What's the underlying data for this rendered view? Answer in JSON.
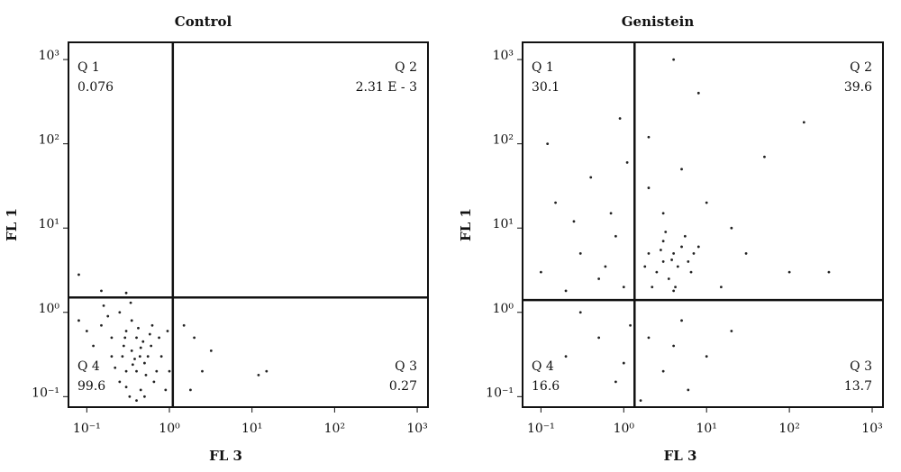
{
  "chart_data": [
    {
      "type": "scatter",
      "title": "Control",
      "x_label": "FL 3",
      "y_label": "FL 1",
      "log_x": true,
      "log_y": true,
      "color": "#222222",
      "xlim": [
        0.06,
        1350
      ],
      "ylim": [
        0.075,
        1600
      ],
      "xticks": [
        {
          "value": 0.1,
          "label": "10⁻¹"
        },
        {
          "value": 1,
          "label": "10⁰"
        },
        {
          "value": 10,
          "label": "10¹"
        },
        {
          "value": 100,
          "label": "10²"
        },
        {
          "value": 1000,
          "label": "10³"
        }
      ],
      "yticks": [
        {
          "value": 0.1,
          "label": "10⁻¹"
        },
        {
          "value": 1,
          "label": "10⁰"
        },
        {
          "value": 10,
          "label": "10¹"
        },
        {
          "value": 100,
          "label": "10²"
        },
        {
          "value": 1000,
          "label": "10³"
        }
      ],
      "gate": {
        "x": 1.1,
        "y": 1.5
      },
      "quadrants": [
        {
          "name": "Q 1",
          "value": 0.076
        },
        {
          "name": "Q 2",
          "value": 0.00231,
          "label": "2.31 E - 3"
        },
        {
          "name": "Q 3",
          "value": 0.27
        },
        {
          "name": "Q 4",
          "value": 99.6
        }
      ],
      "x": [
        0.2,
        0.3,
        0.4,
        0.25,
        0.35,
        0.5,
        0.45,
        0.6,
        0.3,
        0.2,
        0.4,
        0.55,
        0.7,
        0.33,
        0.28,
        0.38,
        0.48,
        0.22,
        0.65,
        0.42,
        0.15,
        0.12,
        0.8,
        0.9,
        0.35,
        0.5,
        0.27,
        0.45,
        0.58,
        0.3,
        0.18,
        0.75,
        0.62,
        0.4,
        0.52,
        0.36,
        0.44,
        0.29,
        1.0,
        0.95,
        0.1,
        0.08,
        0.25,
        0.16,
        0.34,
        2.0,
        2.5,
        3.2,
        12,
        15,
        1.8,
        0.08,
        0.15,
        0.3,
        1.5
      ],
      "y": [
        0.3,
        0.2,
        0.5,
        0.15,
        0.35,
        0.25,
        0.12,
        0.4,
        0.6,
        0.5,
        0.2,
        0.3,
        0.2,
        0.1,
        0.4,
        0.28,
        0.45,
        0.22,
        0.15,
        0.65,
        0.7,
        0.4,
        0.3,
        0.12,
        0.8,
        0.1,
        0.3,
        0.38,
        0.55,
        0.13,
        0.9,
        0.5,
        0.7,
        0.09,
        0.18,
        0.24,
        0.3,
        0.5,
        0.2,
        0.6,
        0.6,
        0.8,
        1.0,
        1.2,
        1.3,
        0.5,
        0.2,
        0.35,
        0.18,
        0.2,
        0.12,
        2.8,
        1.8,
        1.7,
        0.7
      ]
    },
    {
      "type": "scatter",
      "title": "Genistein",
      "x_label": "FL 3",
      "y_label": "FL 1",
      "log_x": true,
      "log_y": true,
      "color": "#222222",
      "xlim": [
        0.06,
        1350
      ],
      "ylim": [
        0.075,
        1600
      ],
      "xticks": [
        {
          "value": 0.1,
          "label": "10⁻¹"
        },
        {
          "value": 1,
          "label": "10⁰"
        },
        {
          "value": 10,
          "label": "10¹"
        },
        {
          "value": 100,
          "label": "10²"
        },
        {
          "value": 1000,
          "label": "10³"
        }
      ],
      "yticks": [
        {
          "value": 0.1,
          "label": "10⁻¹"
        },
        {
          "value": 1,
          "label": "10⁰"
        },
        {
          "value": 10,
          "label": "10¹"
        },
        {
          "value": 100,
          "label": "10²"
        },
        {
          "value": 1000,
          "label": "10³"
        }
      ],
      "gate": {
        "x": 1.35,
        "y": 1.4
      },
      "quadrants": [
        {
          "name": "Q 1",
          "value": 30.1
        },
        {
          "name": "Q 2",
          "value": 39.6
        },
        {
          "name": "Q 3",
          "value": 13.7
        },
        {
          "name": "Q 4",
          "value": 16.6
        }
      ],
      "x": [
        3,
        4,
        2.5,
        5,
        3.5,
        6,
        2,
        4.5,
        3,
        7,
        2.2,
        5.5,
        3.8,
        4.2,
        2.8,
        6.5,
        1.8,
        3.2,
        8,
        4,
        0.1,
        0.2,
        0.3,
        0.5,
        0.8,
        0.15,
        0.4,
        0.7,
        1.1,
        0.25,
        0.6,
        1.0,
        0.12,
        0.9,
        2,
        5,
        10,
        20,
        50,
        150,
        30,
        8,
        4,
        100,
        300,
        15,
        3,
        2,
        2,
        3,
        5,
        10,
        0.5,
        0.2,
        0.8,
        1.2,
        1.6,
        0.3,
        6,
        20,
        4,
        1.0
      ],
      "y": [
        4,
        5,
        3,
        6,
        2.5,
        4,
        5,
        3.5,
        7,
        5,
        2,
        8,
        4.2,
        2,
        5.5,
        3,
        3.5,
        9,
        6,
        1.8,
        3,
        1.8,
        5,
        2.5,
        8,
        20,
        40,
        15,
        60,
        12,
        3.5,
        2,
        100,
        200,
        30,
        50,
        20,
        10,
        70,
        180,
        5,
        400,
        1000,
        3,
        3,
        2,
        15,
        120,
        0.5,
        0.2,
        0.8,
        0.3,
        0.5,
        0.3,
        0.15,
        0.7,
        0.09,
        1.0,
        0.12,
        0.6,
        0.4,
        0.25
      ]
    }
  ]
}
